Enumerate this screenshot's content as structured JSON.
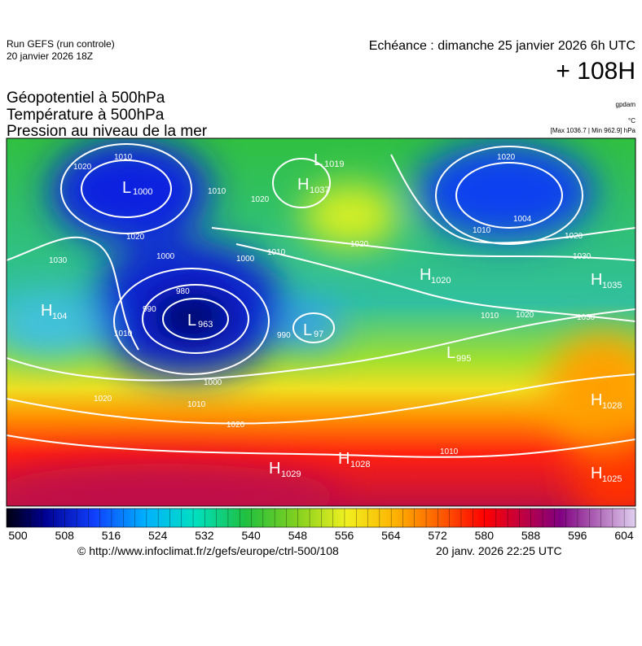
{
  "header": {
    "run": "Run GEFS (run controle)",
    "date": "20 janvier 2026 18Z",
    "echeance": "Echéance : dimanche 25 janvier 2026 6h UTC",
    "lead": "+ 108H"
  },
  "fields": [
    "Géopotentiel à 500hPa",
    "Température à 500hPa",
    "Pression au niveau de la mer"
  ],
  "units": [
    "gpdam",
    "°C",
    "[Max 1036.7 | Min 962.9] hPa"
  ],
  "centers": [
    {
      "type": "L",
      "value": "1000"
    },
    {
      "type": "L",
      "value": "1019"
    },
    {
      "type": "H",
      "value": "1037"
    },
    {
      "type": "L",
      "value": "963"
    },
    {
      "type": "L",
      "value": "97"
    },
    {
      "type": "H",
      "value": "1020"
    },
    {
      "type": "H",
      "value": "1035"
    },
    {
      "type": "H",
      "value": "104"
    },
    {
      "type": "L",
      "value": "995"
    },
    {
      "type": "H",
      "value": "1028"
    },
    {
      "type": "H",
      "value": "1029"
    },
    {
      "type": "H",
      "value": "1028"
    },
    {
      "type": "H",
      "value": "1025"
    }
  ],
  "isobar_labels": [
    "1010",
    "1020",
    "1020",
    "1030",
    "1000",
    "990",
    "980",
    "1010",
    "1020",
    "1010",
    "1000",
    "1020",
    "990",
    "1000",
    "1010",
    "1020",
    "1020",
    "1010",
    "1020",
    "1010",
    "1020",
    "1030",
    "1020",
    "1030",
    "1010",
    "1010",
    "1004"
  ],
  "colorbar_labels": [
    "500",
    "508",
    "516",
    "524",
    "532",
    "540",
    "548",
    "556",
    "564",
    "572",
    "580",
    "588",
    "596",
    "604"
  ],
  "footer": {
    "url": "© http://www.infoclimat.fr/z/gefs/europe/ctrl-500/108",
    "date": "20 janv. 2026 22:25 UTC"
  }
}
